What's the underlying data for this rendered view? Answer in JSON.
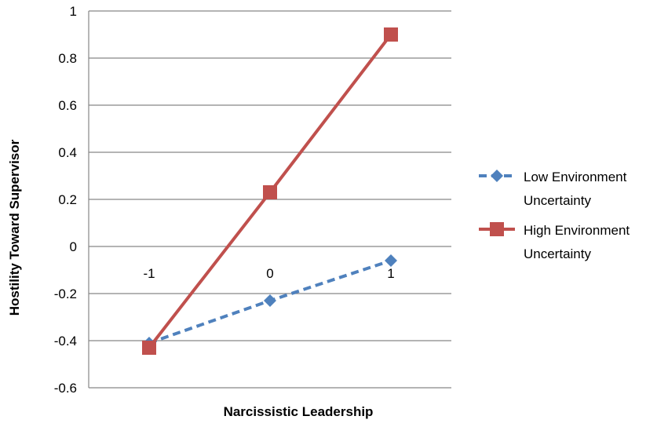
{
  "chart_data": {
    "type": "line",
    "xlabel": "Narcissistic Leadership",
    "ylabel": "Hostility Toward Supervisor",
    "categories": [
      "-1",
      "0",
      "1"
    ],
    "ylim": [
      -0.6,
      1
    ],
    "yticks": [
      "1",
      "0.8",
      "0.6",
      "0.4",
      "0.2",
      "0",
      "-0.2",
      "-0.4",
      "-0.6"
    ],
    "ytick_values": [
      1,
      0.8,
      0.6,
      0.4,
      0.2,
      0,
      -0.2,
      -0.4,
      -0.6
    ],
    "grid": true,
    "legend_position": "right",
    "series": [
      {
        "name": "Low Environment Uncertainty",
        "name_lines": [
          "Low Environment",
          "Uncertainty"
        ],
        "values": [
          -0.41,
          -0.23,
          -0.06
        ],
        "color": "#4F81BD",
        "marker": "diamond",
        "dashed": true
      },
      {
        "name": "High Environment Uncertainty",
        "name_lines": [
          "High Environment",
          "Uncertainty"
        ],
        "values": [
          -0.43,
          0.23,
          0.9
        ],
        "color": "#C0504D",
        "marker": "square",
        "dashed": false
      }
    ]
  }
}
